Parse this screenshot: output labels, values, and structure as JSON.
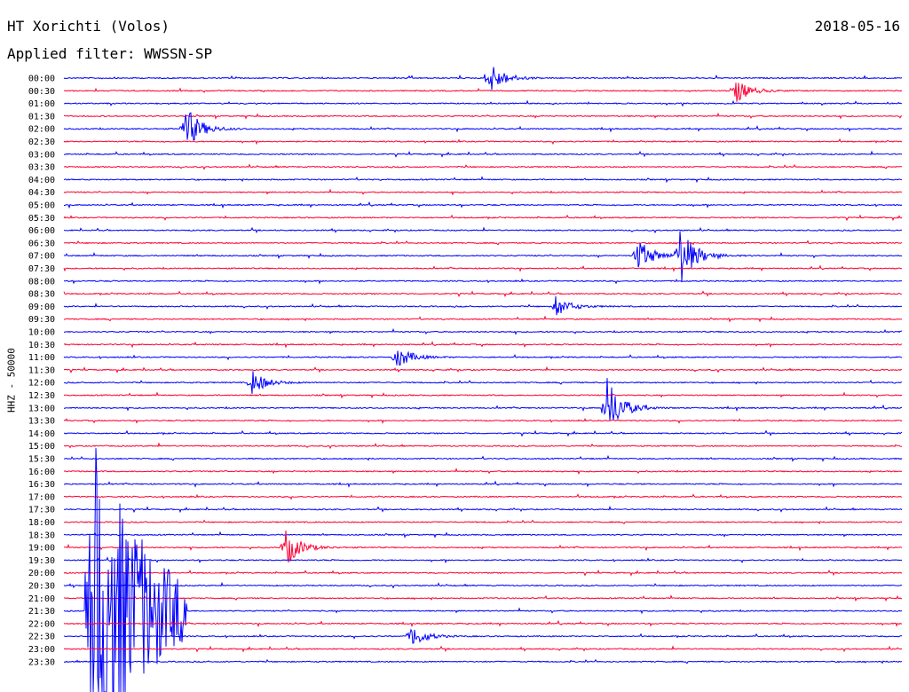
{
  "header": {
    "station": "HT Xorichti (Volos)",
    "date": "2018-05-16",
    "filter": "Applied filter: WWSSN-SP"
  },
  "chart_data": {
    "type": "line",
    "title": "HT Xorichti (Volos)",
    "xlabel": "",
    "ylabel": "HHZ - 50000",
    "colors": [
      "#0000ff",
      "#ff0033"
    ],
    "categories": [
      "00:00",
      "00:30",
      "01:00",
      "01:30",
      "02:00",
      "02:30",
      "03:00",
      "03:30",
      "04:00",
      "04:30",
      "05:00",
      "05:30",
      "06:00",
      "06:30",
      "07:00",
      "07:30",
      "08:00",
      "08:30",
      "09:00",
      "09:30",
      "10:00",
      "10:30",
      "11:00",
      "11:30",
      "12:00",
      "12:30",
      "13:00",
      "13:30",
      "14:00",
      "15:00",
      "15:30",
      "16:00",
      "16:30",
      "17:00",
      "17:30",
      "18:00",
      "18:30",
      "19:00",
      "19:30",
      "20:00",
      "20:30",
      "21:00",
      "21:30",
      "22:00",
      "22:30",
      "23:00",
      "23:30"
    ],
    "minutes_per_line": 30,
    "events": [
      {
        "line": "00:00",
        "minute": 15.2,
        "amplitude": 20
      },
      {
        "line": "00:30",
        "minute": 24.0,
        "amplitude": 15
      },
      {
        "line": "02:00",
        "minute": 4.3,
        "amplitude": 30
      },
      {
        "line": "07:00",
        "minute": 20.5,
        "amplitude": 22
      },
      {
        "line": "07:00",
        "minute": 22.0,
        "amplitude": 40
      },
      {
        "line": "09:00",
        "minute": 17.6,
        "amplitude": 12
      },
      {
        "line": "11:00",
        "minute": 11.9,
        "amplitude": 14
      },
      {
        "line": "12:00",
        "minute": 6.7,
        "amplitude": 15
      },
      {
        "line": "13:00",
        "minute": 19.4,
        "amplitude": 38
      },
      {
        "line": "19:00",
        "minute": 7.9,
        "amplitude": 24
      },
      {
        "line": "21:30",
        "minute": 0.9,
        "amplitude": 230
      },
      {
        "line": "22:30",
        "minute": 12.4,
        "amplitude": 14
      }
    ]
  }
}
